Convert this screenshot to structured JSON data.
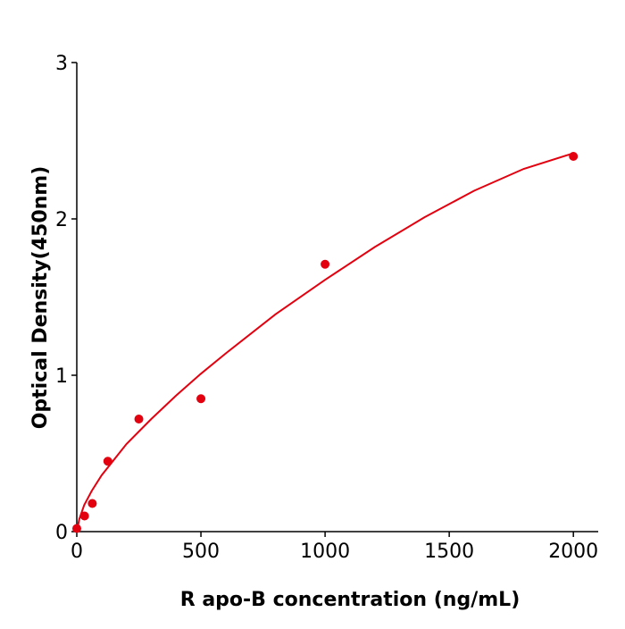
{
  "chart_data": {
    "type": "scatter",
    "title": "",
    "xlabel": "R  apo-B concentration (ng/mL)",
    "ylabel": "Optical Density(450nm)",
    "xlim": [
      0,
      2100
    ],
    "ylim": [
      0,
      3
    ],
    "xticks": [
      0,
      500,
      1000,
      1500,
      2000
    ],
    "yticks": [
      0,
      1,
      2,
      3
    ],
    "grid": false,
    "color": "#e3000f",
    "points": {
      "x": [
        0,
        31.25,
        62.5,
        125,
        250,
        500,
        1000,
        2000
      ],
      "y": [
        0.02,
        0.1,
        0.18,
        0.45,
        0.72,
        0.85,
        1.71,
        2.4
      ]
    },
    "fit_curve": {
      "x": [
        0,
        10,
        30,
        60,
        100,
        150,
        200,
        250,
        300,
        400,
        500,
        600,
        800,
        1000,
        1200,
        1400,
        1600,
        1800,
        2000
      ],
      "y": [
        0,
        0.08,
        0.17,
        0.26,
        0.36,
        0.46,
        0.56,
        0.64,
        0.72,
        0.87,
        1.01,
        1.14,
        1.39,
        1.61,
        1.82,
        2.01,
        2.18,
        2.32,
        2.42
      ]
    }
  }
}
